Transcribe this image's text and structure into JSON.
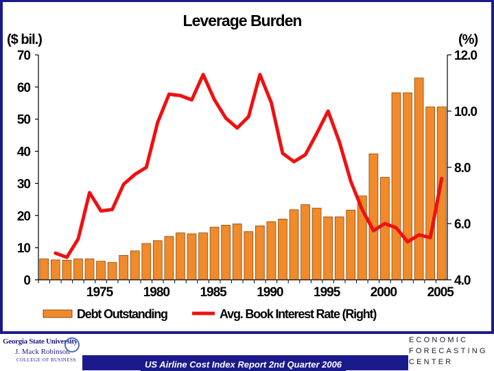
{
  "chart_data": {
    "type": "bar+line",
    "title": "Leverage Burden",
    "left_unit": "($ bil.)",
    "right_unit": "(%)",
    "left_ticks": [
      "70",
      "60",
      "50",
      "40",
      "30",
      "20",
      "10",
      "0"
    ],
    "left_tick_values": [
      70,
      60,
      50,
      40,
      30,
      20,
      10,
      0
    ],
    "right_ticks": [
      "12.0",
      "10.0",
      "8.0",
      "6.0",
      "4.0"
    ],
    "right_tick_values": [
      12.0,
      10.0,
      8.0,
      6.0,
      4.0
    ],
    "ylim_left": [
      0,
      70
    ],
    "ylim_right": [
      4.0,
      12.0
    ],
    "x_tick_labels": [
      "1975",
      "1980",
      "1985",
      "1990",
      "1995",
      "2000",
      "2005"
    ],
    "x_tick_years": [
      1975,
      1980,
      1985,
      1990,
      1995,
      2000,
      2005
    ],
    "years": [
      1970,
      1971,
      1972,
      1973,
      1974,
      1975,
      1976,
      1977,
      1978,
      1979,
      1980,
      1981,
      1982,
      1983,
      1984,
      1985,
      1986,
      1987,
      1988,
      1989,
      1990,
      1991,
      1992,
      1993,
      1994,
      1995,
      1996,
      1997,
      1998,
      1999,
      2000,
      2001,
      2002,
      2003,
      2004,
      2005
    ],
    "series": [
      {
        "name": "Debt Outstanding",
        "type": "bar",
        "axis": "left",
        "color": "#f08a2a",
        "values": [
          6.5,
          6.2,
          6.1,
          6.5,
          6.5,
          5.8,
          5.4,
          7.6,
          9.0,
          11.3,
          12.2,
          13.5,
          14.6,
          14.3,
          14.6,
          16.4,
          17.0,
          17.4,
          15.0,
          16.8,
          18.1,
          18.9,
          21.8,
          23.4,
          22.3,
          19.6,
          19.6,
          21.7,
          26.1,
          39.2,
          31.9,
          58.2,
          58.2,
          62.8,
          53.8,
          53.8
        ]
      },
      {
        "name": "Avg. Book Interest Rate (Right)",
        "type": "line",
        "axis": "right",
        "color": "#ee1111",
        "values": [
          null,
          4.95,
          4.8,
          5.45,
          7.1,
          6.45,
          6.5,
          7.4,
          7.75,
          8.0,
          9.6,
          10.6,
          10.55,
          10.4,
          11.3,
          10.4,
          9.75,
          9.4,
          9.8,
          11.3,
          10.3,
          8.5,
          8.2,
          8.45,
          9.2,
          10.0,
          8.9,
          7.5,
          6.5,
          5.75,
          6.0,
          5.85,
          5.35,
          5.6,
          5.5,
          7.6
        ]
      }
    ],
    "legend": [
      "Debt Outstanding",
      "Avg. Book Interest Rate (Right)"
    ],
    "legend_position": "bottom"
  },
  "footer": {
    "report": "US Airline Cost Index Report 2nd Quarter 2006",
    "gsu_line1": "Georgia State University",
    "gsu_line2": "J. Mack Robinson",
    "gsu_line3": "COLLEGE OF BUSINESS",
    "efc_line1": "ECONOMIC",
    "efc_line2": "FORECASTING",
    "efc_line3": "CENTER"
  },
  "colors": {
    "frame": "#1a1a8c",
    "bar": "#f08a2a",
    "line": "#ee1111"
  }
}
